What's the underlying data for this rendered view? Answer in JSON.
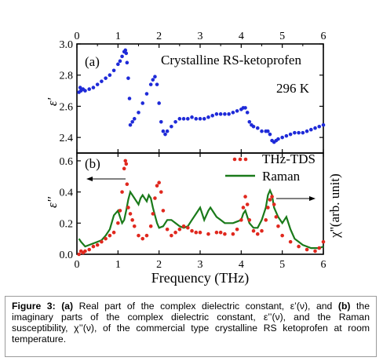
{
  "figure": {
    "caption": {
      "label": "Figure 3:",
      "part_a": "(a)",
      "text_a": " Real part of the complex dielectric constant, ε’(ν), and ",
      "part_b": "(b)",
      "text_b": " the imaginary parts of the complex dielectric constant, ε’’(ν), and the Raman susceptibility, χ’’(ν),  of the commercial type crystalline RS ketoprofen at room temperature."
    }
  },
  "colors": {
    "thz": "#1e2ad8",
    "thz_b": "#e0281e",
    "raman": "#1a7a1a",
    "axis": "#000000"
  },
  "chart_data": [
    {
      "type": "scatter",
      "panel_label": "(a)",
      "annotation": "Crystalline RS-ketoprofen",
      "temperature_label": "296 K",
      "ylabel": "ε'",
      "xlim": [
        0,
        6
      ],
      "ylim": [
        2.3,
        3.0
      ],
      "x_ticks": [
        0,
        1,
        2,
        3,
        4,
        5,
        6
      ],
      "y_ticks": [
        2.4,
        2.6,
        2.8,
        3.0
      ],
      "y_tick_labels": [
        "2.4",
        "2.6",
        "2.8",
        "3.0"
      ],
      "x_tick_labels_top": [
        "0",
        "1",
        "2",
        "3",
        "4",
        "5",
        "6"
      ],
      "series": [
        {
          "x": [
            0.05,
            0.08,
            0.1,
            0.15,
            0.2,
            0.3,
            0.4,
            0.5,
            0.6,
            0.7,
            0.8,
            0.9,
            1.0,
            1.05,
            1.1,
            1.15,
            1.18,
            1.2,
            1.22,
            1.25,
            1.28,
            1.3,
            1.35,
            1.4,
            1.5,
            1.6,
            1.7,
            1.8,
            1.85,
            1.9,
            1.95,
            2.0,
            2.05,
            2.1,
            2.15,
            2.2,
            2.3,
            2.4,
            2.5,
            2.6,
            2.7,
            2.8,
            2.9,
            3.0,
            3.1,
            3.2,
            3.3,
            3.4,
            3.5,
            3.6,
            3.7,
            3.8,
            3.9,
            4.0,
            4.05,
            4.1,
            4.15,
            4.2,
            4.25,
            4.3,
            4.4,
            4.5,
            4.6,
            4.65,
            4.7,
            4.75,
            4.8,
            4.85,
            4.9,
            5.0,
            5.1,
            5.2,
            5.3,
            5.4,
            5.5,
            5.6,
            5.7,
            5.8,
            5.9,
            6.0
          ],
          "y": [
            2.69,
            2.72,
            2.7,
            2.71,
            2.7,
            2.71,
            2.72,
            2.74,
            2.76,
            2.78,
            2.8,
            2.83,
            2.87,
            2.89,
            2.92,
            2.95,
            2.96,
            2.94,
            2.88,
            2.78,
            2.65,
            2.48,
            2.5,
            2.52,
            2.56,
            2.62,
            2.68,
            2.74,
            2.77,
            2.79,
            2.74,
            2.62,
            2.5,
            2.44,
            2.42,
            2.44,
            2.47,
            2.5,
            2.52,
            2.52,
            2.52,
            2.53,
            2.52,
            2.52,
            2.52,
            2.53,
            2.54,
            2.55,
            2.55,
            2.55,
            2.55,
            2.56,
            2.57,
            2.58,
            2.59,
            2.59,
            2.56,
            2.5,
            2.48,
            2.47,
            2.46,
            2.44,
            2.44,
            2.44,
            2.42,
            2.38,
            2.37,
            2.38,
            2.39,
            2.4,
            2.41,
            2.42,
            2.43,
            2.43,
            2.43,
            2.44,
            2.45,
            2.46,
            2.47,
            2.48
          ]
        }
      ]
    },
    {
      "type": "line",
      "panel_label": "(b)",
      "ylabel": "ε''",
      "ylabel_right": "χ''(arb. unit)",
      "xlabel": "Frequency (THz)",
      "xlim": [
        0,
        6
      ],
      "ylim": [
        0,
        0.65
      ],
      "x_ticks": [
        0,
        1,
        2,
        3,
        4,
        5,
        6
      ],
      "x_tick_labels": [
        "0",
        "1",
        "2",
        "3",
        "4",
        "5",
        "6"
      ],
      "y_ticks": [
        0,
        0.2,
        0.4,
        0.6
      ],
      "y_tick_labels": [
        "0.0",
        "0.2",
        "0.4",
        "0.6"
      ],
      "legend": [
        "THz-TDS",
        "Raman"
      ],
      "series": [
        {
          "name": "THz-TDS",
          "x": [
            0.05,
            0.1,
            0.15,
            0.2,
            0.3,
            0.4,
            0.5,
            0.6,
            0.7,
            0.8,
            0.9,
            1.0,
            1.05,
            1.1,
            1.15,
            1.18,
            1.2,
            1.22,
            1.25,
            1.3,
            1.35,
            1.4,
            1.5,
            1.6,
            1.7,
            1.8,
            1.85,
            1.9,
            1.95,
            2.0,
            2.05,
            2.1,
            2.2,
            2.3,
            2.4,
            2.5,
            2.6,
            2.7,
            2.8,
            2.9,
            3.0,
            3.2,
            3.4,
            3.5,
            3.6,
            3.8,
            3.9,
            4.0,
            4.05,
            4.1,
            4.15,
            4.2,
            4.3,
            4.4,
            4.5,
            4.6,
            4.65,
            4.7,
            4.75,
            4.8,
            4.85,
            4.9,
            5.0,
            5.2,
            5.4,
            5.6,
            5.8,
            5.9,
            6.0
          ],
          "y": [
            0.0,
            0.02,
            0.01,
            0.02,
            0.03,
            0.05,
            0.06,
            0.08,
            0.1,
            0.12,
            0.14,
            0.2,
            0.28,
            0.4,
            0.55,
            0.6,
            0.58,
            0.45,
            0.3,
            0.26,
            0.22,
            0.18,
            0.12,
            0.1,
            0.12,
            0.18,
            0.26,
            0.36,
            0.44,
            0.46,
            0.4,
            0.28,
            0.16,
            0.12,
            0.14,
            0.16,
            0.18,
            0.17,
            0.15,
            0.14,
            0.14,
            0.13,
            0.14,
            0.14,
            0.13,
            0.13,
            0.16,
            0.22,
            0.3,
            0.37,
            0.32,
            0.22,
            0.15,
            0.13,
            0.15,
            0.22,
            0.3,
            0.35,
            0.37,
            0.32,
            0.24,
            0.18,
            0.12,
            0.08,
            0.05,
            0.03,
            0.02,
            0.04,
            0.08
          ]
        },
        {
          "name": "Raman",
          "x": [
            0.05,
            0.1,
            0.2,
            0.3,
            0.4,
            0.5,
            0.6,
            0.7,
            0.8,
            0.9,
            1.0,
            1.05,
            1.1,
            1.15,
            1.2,
            1.25,
            1.3,
            1.35,
            1.4,
            1.5,
            1.55,
            1.6,
            1.65,
            1.7,
            1.75,
            1.8,
            1.85,
            1.9,
            1.95,
            2.0,
            2.1,
            2.2,
            2.3,
            2.4,
            2.5,
            2.6,
            2.7,
            2.8,
            2.9,
            3.0,
            3.05,
            3.1,
            3.2,
            3.25,
            3.3,
            3.4,
            3.5,
            3.6,
            3.7,
            3.8,
            3.9,
            4.0,
            4.05,
            4.1,
            4.15,
            4.2,
            4.3,
            4.4,
            4.5,
            4.6,
            4.65,
            4.7,
            4.75,
            4.8,
            4.9,
            5.0,
            5.05,
            5.1,
            5.2,
            5.3,
            5.4,
            5.5,
            5.6,
            5.7,
            5.8,
            5.9,
            6.0
          ],
          "y": [
            0.1,
            0.08,
            0.05,
            0.06,
            0.07,
            0.08,
            0.09,
            0.12,
            0.16,
            0.25,
            0.28,
            0.24,
            0.2,
            0.22,
            0.28,
            0.35,
            0.4,
            0.38,
            0.36,
            0.32,
            0.36,
            0.38,
            0.36,
            0.34,
            0.38,
            0.36,
            0.3,
            0.25,
            0.2,
            0.17,
            0.18,
            0.22,
            0.22,
            0.2,
            0.18,
            0.17,
            0.18,
            0.22,
            0.26,
            0.3,
            0.26,
            0.22,
            0.28,
            0.3,
            0.28,
            0.24,
            0.22,
            0.2,
            0.2,
            0.2,
            0.21,
            0.22,
            0.26,
            0.28,
            0.24,
            0.2,
            0.17,
            0.17,
            0.22,
            0.3,
            0.38,
            0.41,
            0.38,
            0.3,
            0.24,
            0.2,
            0.22,
            0.24,
            0.16,
            0.1,
            0.08,
            0.06,
            0.05,
            0.04,
            0.04,
            0.04,
            0.05
          ]
        }
      ]
    }
  ]
}
